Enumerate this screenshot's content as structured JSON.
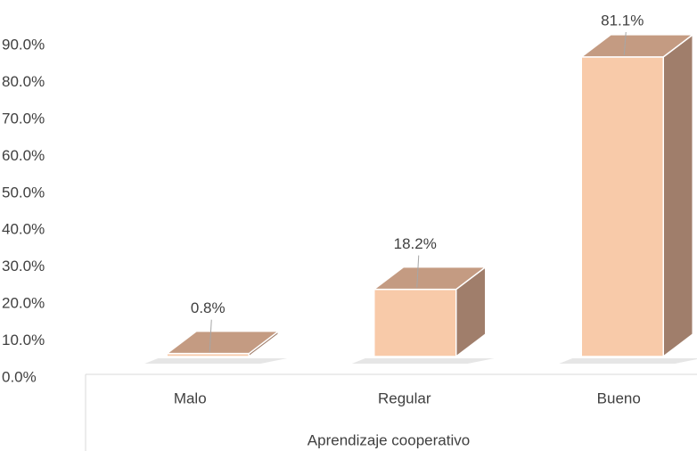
{
  "chart_data": {
    "type": "bar3d",
    "x_label": "Aprendizaje cooperativo",
    "categories": [
      "Malo",
      "Regular",
      "Bueno"
    ],
    "values": [
      0.8,
      18.2,
      81.1
    ],
    "value_labels": [
      "0.8%",
      "18.2%",
      "81.1%"
    ],
    "colors": {
      "front": "#f8caa9",
      "top": "#c49b82",
      "side": "#a07e6b"
    },
    "ylim": [
      0,
      90
    ],
    "yticks": [
      {
        "value": 0,
        "label": "0.0%"
      },
      {
        "value": 10,
        "label": "10.0%"
      },
      {
        "value": 20,
        "label": "20.0%"
      },
      {
        "value": 30,
        "label": "30.0%"
      },
      {
        "value": 40,
        "label": "40.0%"
      },
      {
        "value": 50,
        "label": "50.0%"
      },
      {
        "value": 60,
        "label": "60.0%"
      },
      {
        "value": 70,
        "label": "70.0%"
      },
      {
        "value": 80,
        "label": "80.0%"
      },
      {
        "value": 90,
        "label": "90.0%"
      }
    ]
  }
}
